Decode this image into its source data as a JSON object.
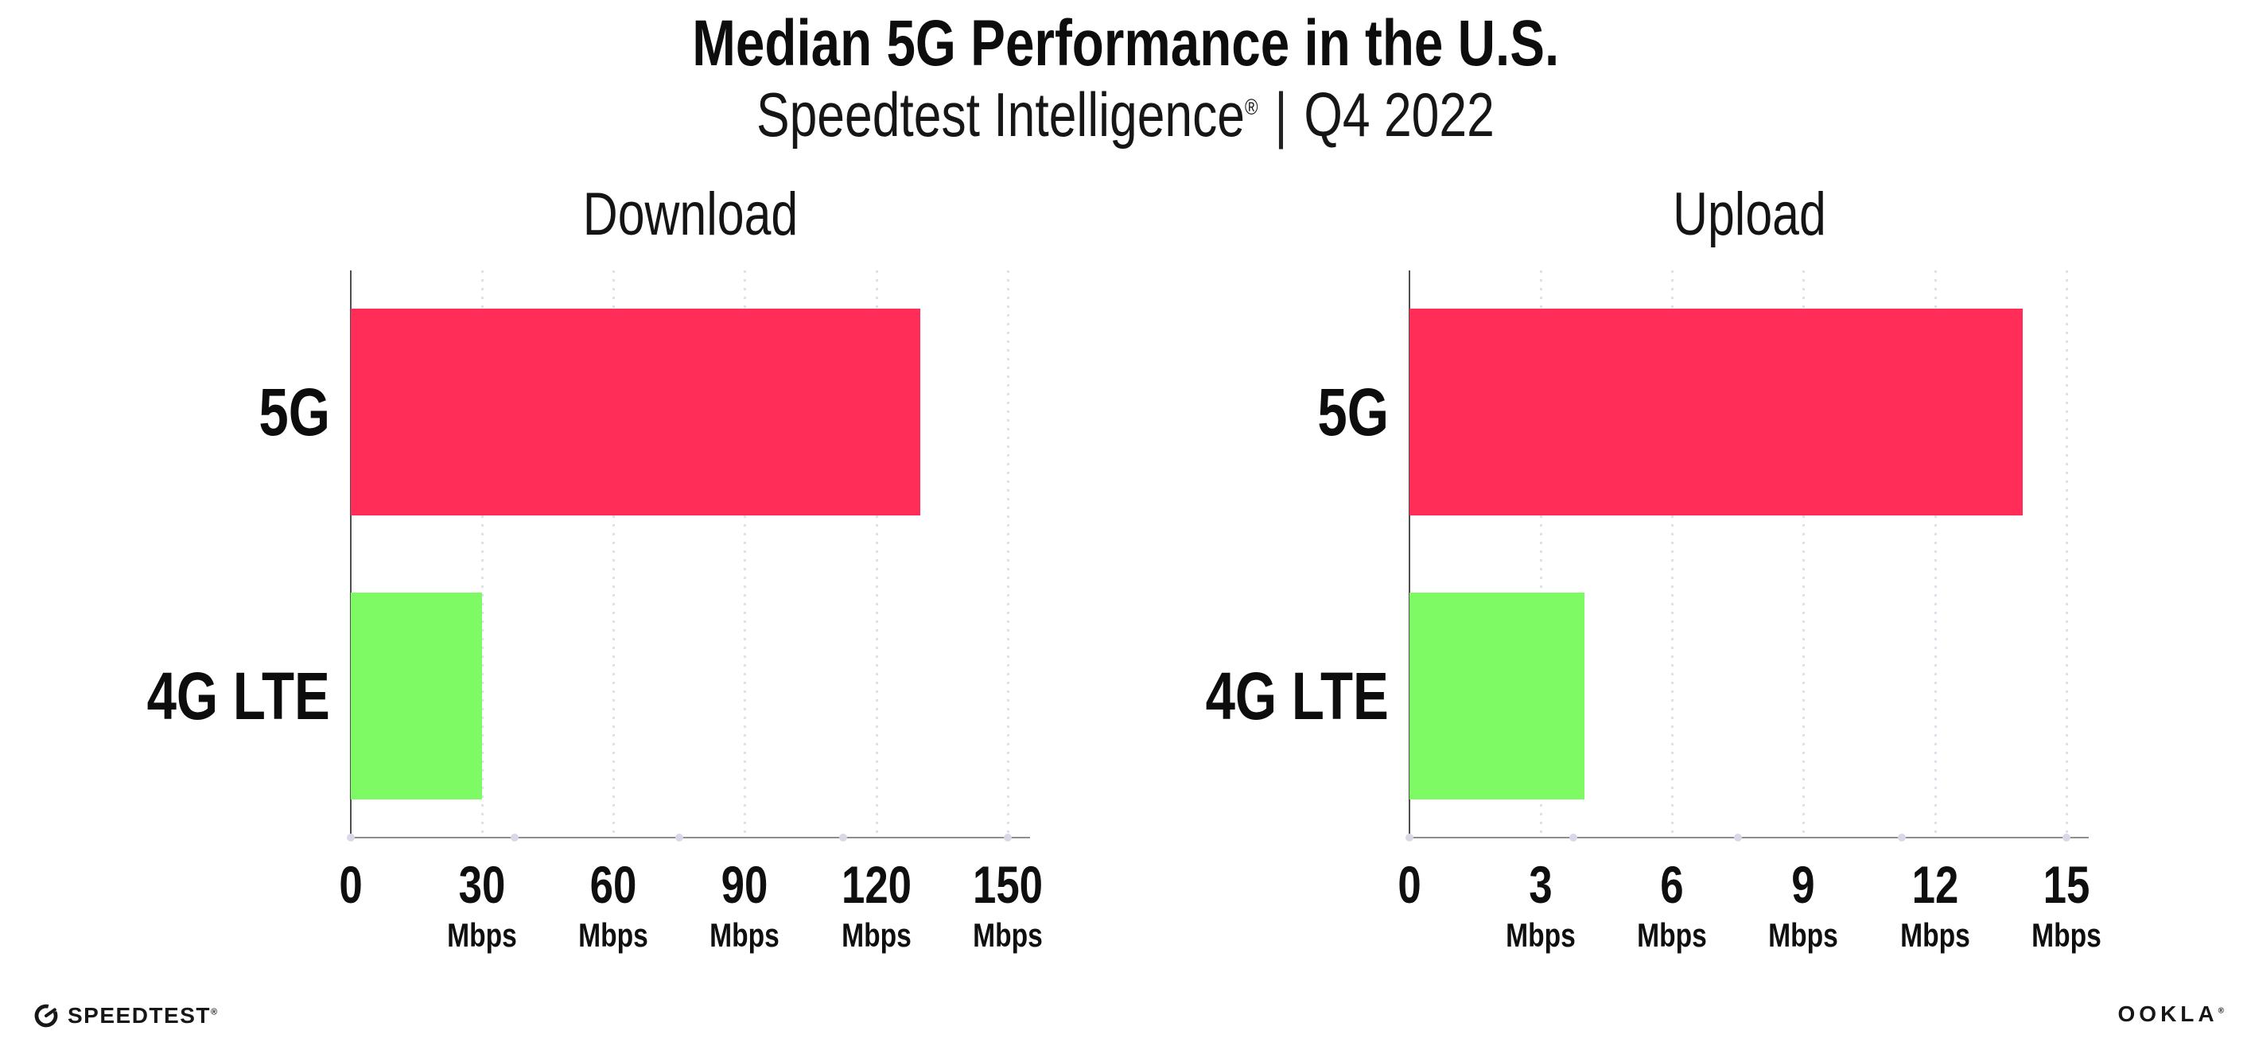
{
  "header": {
    "title": "Median 5G Performance in the U.S.",
    "subtitle_brand": "Speedtest Intelligence",
    "subtitle_reg": "®",
    "subtitle_separator": "|",
    "subtitle_period": "Q4 2022"
  },
  "chart_data": [
    {
      "type": "bar",
      "orientation": "horizontal",
      "title": "Download",
      "categories": [
        "5G",
        "4G LTE"
      ],
      "values": [
        130,
        30
      ],
      "unit": "Mbps",
      "xlim": [
        0,
        150
      ],
      "xticks": [
        0,
        30,
        60,
        90,
        120,
        150
      ],
      "bar_colors": [
        "#ff2d58",
        "#7efb64"
      ],
      "grid": "dotted-vertical",
      "legend": "none"
    },
    {
      "type": "bar",
      "orientation": "horizontal",
      "title": "Upload",
      "categories": [
        "5G",
        "4G LTE"
      ],
      "values": [
        14,
        4
      ],
      "unit": "Mbps",
      "xlim": [
        0,
        15
      ],
      "xticks": [
        0,
        3,
        6,
        9,
        12,
        15
      ],
      "bar_colors": [
        "#ff2d58",
        "#7efb64"
      ],
      "grid": "dotted-vertical",
      "legend": "none"
    }
  ],
  "colors": {
    "bar_5g": "#ff2d58",
    "bar_4g_lte": "#7efb64",
    "gridline": "#dfe0ec",
    "axis_line": "#8f8f8f",
    "y_axis_line": "#4f4f4f",
    "axis_dot": "#d8d9e6",
    "text": "#111111"
  },
  "footer": {
    "speedtest_label": "SPEEDTEST",
    "speedtest_reg": "®",
    "ookla_label": "OOKLA",
    "ookla_reg": "®"
  }
}
